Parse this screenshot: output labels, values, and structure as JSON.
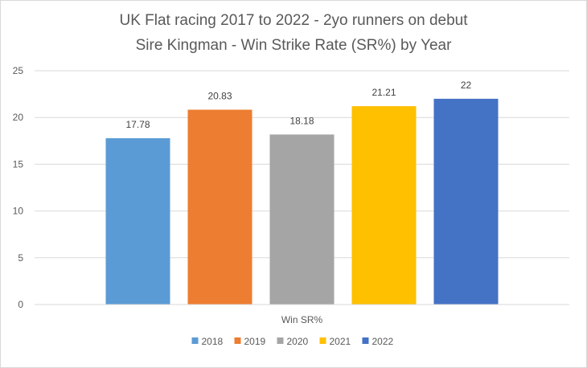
{
  "chart_data": {
    "type": "bar",
    "title": "UK Flat racing 2017 to 2022 - 2yo runners on debut",
    "subtitle": "Sire Kingman - Win Strike Rate (SR%) by Year",
    "categories": [
      "Win SR%"
    ],
    "xlabel": "",
    "ylabel": "",
    "ylim": [
      0,
      25
    ],
    "yticks": [
      0,
      5,
      10,
      15,
      20,
      25
    ],
    "grid": true,
    "legend_position": "bottom",
    "series": [
      {
        "name": "2018",
        "values": [
          17.78
        ],
        "value_label": "17.78",
        "color": "#5b9bd5"
      },
      {
        "name": "2019",
        "values": [
          20.83
        ],
        "value_label": "20.83",
        "color": "#ed7d31"
      },
      {
        "name": "2020",
        "values": [
          18.18
        ],
        "value_label": "18.18",
        "color": "#a5a5a5"
      },
      {
        "name": "2021",
        "values": [
          21.21
        ],
        "value_label": "21.21",
        "color": "#ffc000"
      },
      {
        "name": "2022",
        "values": [
          22
        ],
        "value_label": "22",
        "color": "#4472c4"
      }
    ]
  }
}
